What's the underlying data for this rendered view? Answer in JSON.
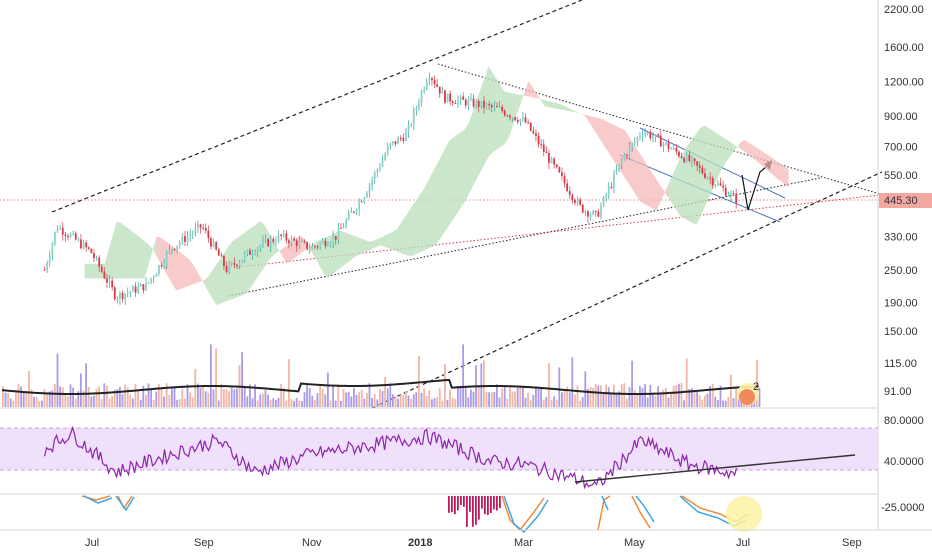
{
  "colors": {
    "up": "#26a69a",
    "down": "#d93a4a",
    "cloud_bull": "#b9dfb9",
    "cloud_bear": "#f5b8b8",
    "rsi_line": "#8e24aa",
    "rsi_band": "#e9d7f7",
    "vol_ma": "#222222",
    "vol_up": "#a99be8",
    "vol_down": "#f0b6a6",
    "price_tag": "#f2a8a0",
    "highlight": "#fbf3a5"
  },
  "price_badge": "445.30",
  "volume_badge": "2",
  "chart_data": {
    "type": "candlestick",
    "main": {
      "y_axis_ticks": [
        "2200.00",
        "1600.00",
        "1200.00",
        "900.00",
        "700.00",
        "550.00",
        "445.30",
        "330.00",
        "250.00",
        "190.00",
        "150.00",
        "115.00",
        "91.00"
      ],
      "last_price": 445.3,
      "scale": "log",
      "path_points": [
        {
          "x": "2017-06-05",
          "y": 250
        },
        {
          "x": "2017-06-12",
          "y": 360
        },
        {
          "x": "2017-06-20",
          "y": 330
        },
        {
          "x": "2017-07-01",
          "y": 290
        },
        {
          "x": "2017-07-15",
          "y": 200
        },
        {
          "x": "2017-08-01",
          "y": 220
        },
        {
          "x": "2017-08-15",
          "y": 300
        },
        {
          "x": "2017-09-01",
          "y": 360
        },
        {
          "x": "2017-09-15",
          "y": 250
        },
        {
          "x": "2017-10-01",
          "y": 300
        },
        {
          "x": "2017-10-15",
          "y": 330
        },
        {
          "x": "2017-11-01",
          "y": 300
        },
        {
          "x": "2017-11-15",
          "y": 330
        },
        {
          "x": "2017-12-01",
          "y": 470
        },
        {
          "x": "2017-12-15",
          "y": 700
        },
        {
          "x": "2017-12-25",
          "y": 780
        },
        {
          "x": "2018-01-06",
          "y": 1300
        },
        {
          "x": "2018-01-15",
          "y": 1050
        },
        {
          "x": "2018-02-01",
          "y": 1000
        },
        {
          "x": "2018-02-15",
          "y": 950
        },
        {
          "x": "2018-03-01",
          "y": 860
        },
        {
          "x": "2018-03-15",
          "y": 620
        },
        {
          "x": "2018-04-01",
          "y": 420
        },
        {
          "x": "2018-04-10",
          "y": 390
        },
        {
          "x": "2018-04-25",
          "y": 640
        },
        {
          "x": "2018-05-06",
          "y": 800
        },
        {
          "x": "2018-05-20",
          "y": 700
        },
        {
          "x": "2018-06-01",
          "y": 620
        },
        {
          "x": "2018-06-15",
          "y": 520
        },
        {
          "x": "2018-06-28",
          "y": 445
        }
      ]
    },
    "rsi": {
      "y_axis_ticks": [
        "80.0000",
        "40.0000"
      ],
      "path_points": [
        {
          "x": "2017-06-05",
          "y": 60
        },
        {
          "x": "2017-06-20",
          "y": 75
        },
        {
          "x": "2017-07-15",
          "y": 38
        },
        {
          "x": "2017-08-15",
          "y": 55
        },
        {
          "x": "2017-09-10",
          "y": 68
        },
        {
          "x": "2017-10-01",
          "y": 38
        },
        {
          "x": "2017-11-01",
          "y": 55
        },
        {
          "x": "2017-12-10",
          "y": 65
        },
        {
          "x": "2018-01-06",
          "y": 72
        },
        {
          "x": "2018-02-10",
          "y": 48
        },
        {
          "x": "2018-03-01",
          "y": 45
        },
        {
          "x": "2018-04-01",
          "y": 30
        },
        {
          "x": "2018-04-10",
          "y": 24
        },
        {
          "x": "2018-05-05",
          "y": 68
        },
        {
          "x": "2018-06-01",
          "y": 45
        },
        {
          "x": "2018-06-28",
          "y": 36
        }
      ]
    },
    "macd": {
      "y_axis_ticks": [
        "-25.0000"
      ]
    },
    "x_axis_ticks": [
      "Jul",
      "Sep",
      "Nov",
      "2018",
      "Mar",
      "May",
      "Jul",
      "Sep"
    ]
  }
}
